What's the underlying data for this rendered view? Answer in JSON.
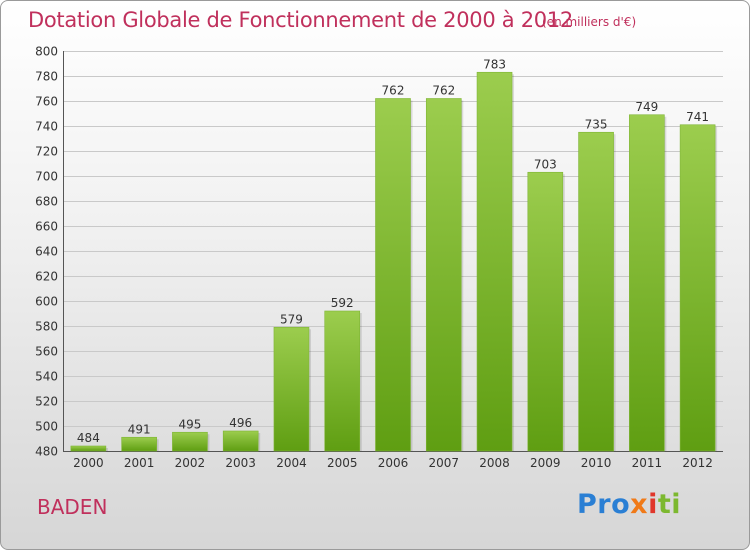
{
  "chart_data": {
    "type": "bar",
    "title": "Dotation Globale de Fonctionnement de 2000 à 2012",
    "subtitle": "(en milliers d'€)",
    "categories": [
      "2000",
      "2001",
      "2002",
      "2003",
      "2004",
      "2005",
      "2006",
      "2007",
      "2008",
      "2009",
      "2010",
      "2011",
      "2012"
    ],
    "values": [
      484,
      491,
      495,
      496,
      579,
      592,
      762,
      762,
      783,
      703,
      735,
      749,
      741
    ],
    "ylim": [
      480,
      800
    ],
    "yticks": [
      480,
      500,
      520,
      540,
      560,
      580,
      600,
      620,
      640,
      660,
      680,
      700,
      720,
      740,
      760,
      780,
      800
    ],
    "grid": true,
    "colors": {
      "bar_light": "#9ccd4e",
      "bar_dark": "#5f9e12",
      "title": "#c0305c"
    }
  },
  "place": "BADEN",
  "logo": {
    "p1": "Pro",
    "p2": "x",
    "p3": "i",
    "p4": "ti"
  }
}
